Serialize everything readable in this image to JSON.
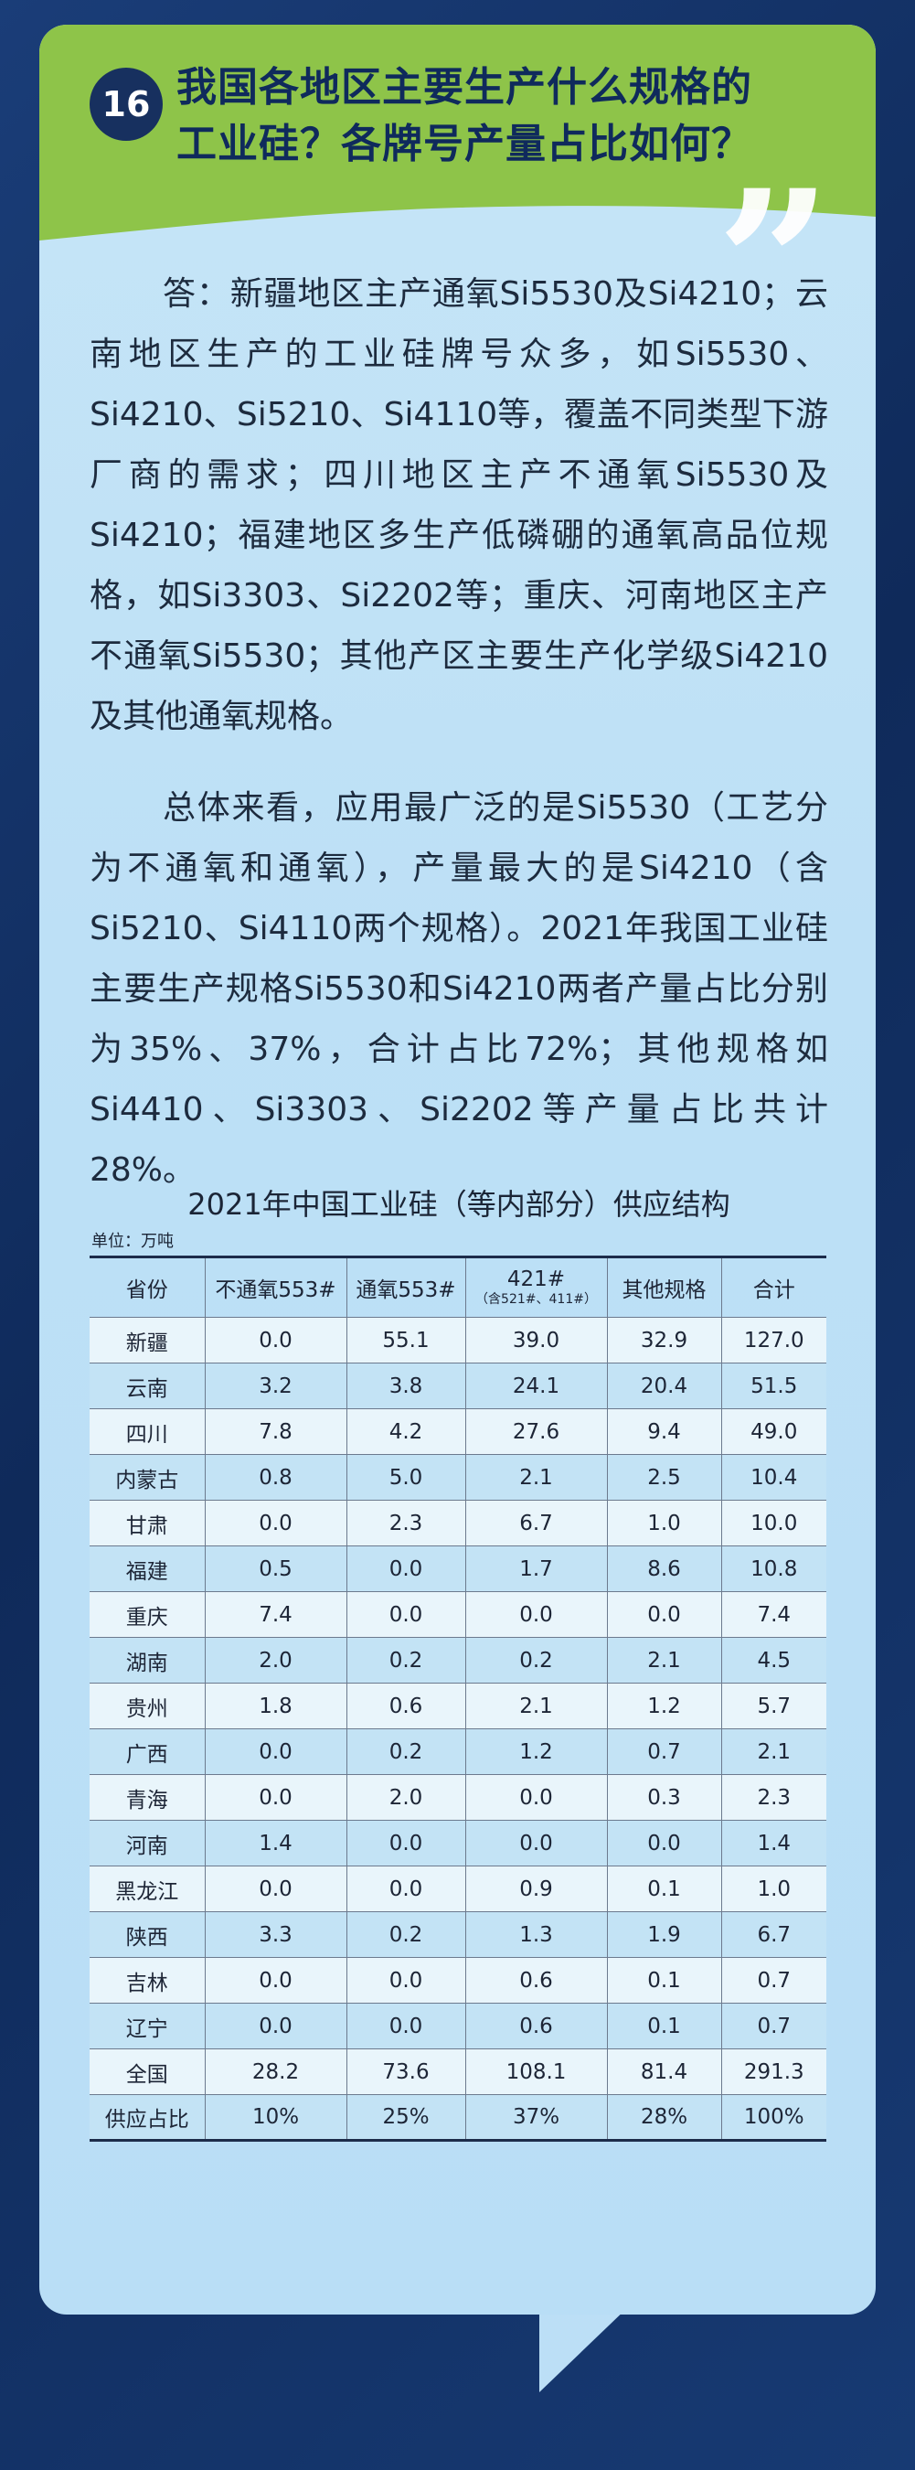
{
  "header": {
    "number": "16",
    "title_line1": "我国各地区主要生产什么规格的",
    "title_line2": "工业硅？各牌号产量占比如何？"
  },
  "colors": {
    "background": "#153469",
    "card": "#c6e5f7",
    "header_green": "#8ec449",
    "title_text": "#0f2a5c",
    "badge": "#17305f"
  },
  "paragraphs": {
    "p1": "答：新疆地区主产通氧Si5530及Si4210；云南地区生产的工业硅牌号众多，如Si5530、Si4210、Si5210、Si4110等，覆盖不同类型下游厂商的需求；四川地区主产不通氧Si5530及Si4210；福建地区多生产低磷硼的通氧高品位规格，如Si3303、Si2202等；重庆、河南地区主产不通氧Si5530；其他产区主要生产化学级Si4210及其他通氧规格。",
    "p2": "总体来看，应用最广泛的是Si5530（工艺分为不通氧和通氧），产量最大的是Si4210（含Si5210、Si4110两个规格）。2021年我国工业硅主要生产规格Si5530和Si4210两者产量占比分别为35%、37%，合计占比72%；其他规格如Si4410、Si3303、Si2202等产量占比共计28%。"
  },
  "table": {
    "title": "2021年中国工业硅（等内部分）供应结构",
    "unit": "单位：万吨",
    "headers": {
      "province": "省份",
      "c1": "不通氧553#",
      "c2": "通氧553#",
      "c3": "421#",
      "c3_sub": "（含521#、411#）",
      "c4": "其他规格",
      "c5": "合计"
    },
    "rows": [
      [
        "新疆",
        "0.0",
        "55.1",
        "39.0",
        "32.9",
        "127.0"
      ],
      [
        "云南",
        "3.2",
        "3.8",
        "24.1",
        "20.4",
        "51.5"
      ],
      [
        "四川",
        "7.8",
        "4.2",
        "27.6",
        "9.4",
        "49.0"
      ],
      [
        "内蒙古",
        "0.8",
        "5.0",
        "2.1",
        "2.5",
        "10.4"
      ],
      [
        "甘肃",
        "0.0",
        "2.3",
        "6.7",
        "1.0",
        "10.0"
      ],
      [
        "福建",
        "0.5",
        "0.0",
        "1.7",
        "8.6",
        "10.8"
      ],
      [
        "重庆",
        "7.4",
        "0.0",
        "0.0",
        "0.0",
        "7.4"
      ],
      [
        "湖南",
        "2.0",
        "0.2",
        "0.2",
        "2.1",
        "4.5"
      ],
      [
        "贵州",
        "1.8",
        "0.6",
        "2.1",
        "1.2",
        "5.7"
      ],
      [
        "广西",
        "0.0",
        "0.2",
        "1.2",
        "0.7",
        "2.1"
      ],
      [
        "青海",
        "0.0",
        "2.0",
        "0.0",
        "0.3",
        "2.3"
      ],
      [
        "河南",
        "1.4",
        "0.0",
        "0.0",
        "0.0",
        "1.4"
      ],
      [
        "黑龙江",
        "0.0",
        "0.0",
        "0.9",
        "0.1",
        "1.0"
      ],
      [
        "陕西",
        "3.3",
        "0.2",
        "1.3",
        "1.9",
        "6.7"
      ],
      [
        "吉林",
        "0.0",
        "0.0",
        "0.6",
        "0.1",
        "0.7"
      ],
      [
        "辽宁",
        "0.0",
        "0.0",
        "0.6",
        "0.1",
        "0.7"
      ],
      [
        "全国",
        "28.2",
        "73.6",
        "108.1",
        "81.4",
        "291.3"
      ],
      [
        "供应占比",
        "10%",
        "25%",
        "37%",
        "28%",
        "100%"
      ]
    ]
  }
}
